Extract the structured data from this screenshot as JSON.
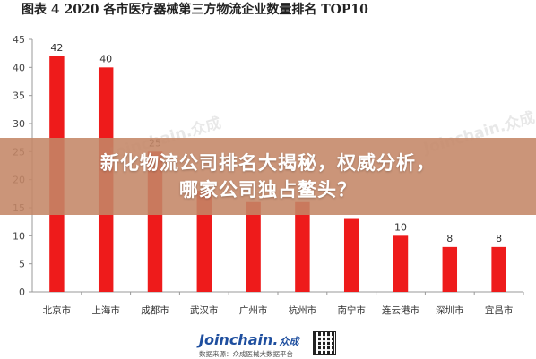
{
  "chart_data": {
    "type": "bar",
    "title": "图表 4    2020 各市医疗器械第三方物流企业数量排名 TOP10",
    "categories": [
      "北京市",
      "上海市",
      "成都市",
      "武汉市",
      "广州市",
      "杭州市",
      "南宁市",
      "连云港市",
      "深圳市",
      "宜昌市"
    ],
    "values": [
      42,
      40,
      25,
      18,
      16,
      16,
      13,
      10,
      8,
      8
    ],
    "visible_value_labels": [
      "42",
      "40",
      "25",
      null,
      null,
      null,
      null,
      "10",
      "8",
      "8"
    ],
    "ylim": [
      0,
      45
    ],
    "yticks": [
      0,
      5,
      10,
      15,
      20,
      25,
      30,
      35,
      40,
      45
    ],
    "grid": false,
    "bar_color": "#ee1b1b"
  },
  "overlay": {
    "line1": "新化物流公司排名大揭秘，权威分析，",
    "line2": "哪家公司独占鳌头？"
  },
  "watermark": "Joinchain.众成",
  "footer": {
    "brand": "Joinchain.",
    "brand_cn": "众成",
    "source": "数据来源：众成医械大数据平台"
  }
}
